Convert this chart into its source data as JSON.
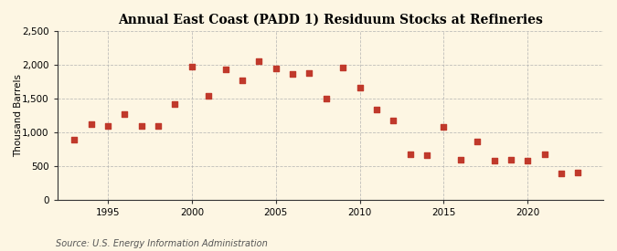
{
  "title": "Annual East Coast (PADD 1) Residuum Stocks at Refineries",
  "ylabel": "Thousand Barrels",
  "source": "Source: U.S. Energy Information Administration",
  "years": [
    1993,
    1994,
    1995,
    1996,
    1997,
    1998,
    1999,
    2000,
    2001,
    2002,
    2003,
    2004,
    2005,
    2006,
    2007,
    2008,
    2009,
    2010,
    2011,
    2012,
    2013,
    2014,
    2015,
    2016,
    2017,
    2018,
    2019,
    2020,
    2021,
    2022,
    2023
  ],
  "values": [
    900,
    1130,
    1090,
    1270,
    1100,
    1090,
    1420,
    1980,
    1540,
    1940,
    1780,
    2060,
    1950,
    1870,
    1880,
    1500,
    1960,
    1660,
    1340,
    1180,
    670,
    660,
    1080,
    600,
    870,
    580,
    600,
    580,
    680,
    390,
    400
  ],
  "marker_color": "#c0392b",
  "marker_size": 4,
  "ylim": [
    0,
    2500
  ],
  "yticks": [
    0,
    500,
    1000,
    1500,
    2000,
    2500
  ],
  "ytick_labels": [
    "0",
    "500",
    "1,000",
    "1,500",
    "2,000",
    "2,500"
  ],
  "xlim": [
    1992.0,
    2024.5
  ],
  "xticks": [
    1995,
    2000,
    2005,
    2010,
    2015,
    2020
  ],
  "background_color": "#fdf6e3",
  "plot_bg_color": "#fdf6e3",
  "grid_color": "#b0b0b0",
  "title_fontsize": 10,
  "label_fontsize": 7.5,
  "source_fontsize": 7
}
